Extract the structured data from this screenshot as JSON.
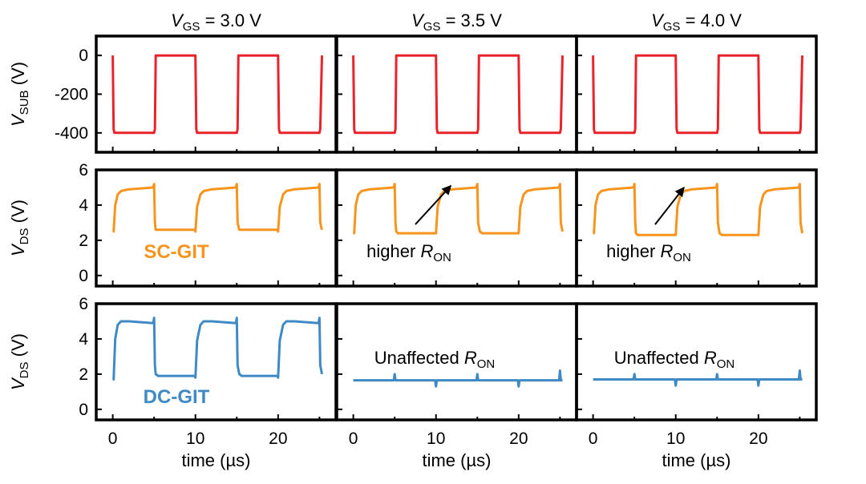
{
  "chart_data": {
    "type": "line",
    "columns": [
      {
        "title_pre": "V",
        "title_sub": "GS",
        "title_post": " = 3.0 V"
      },
      {
        "title_pre": "V",
        "title_sub": "GS",
        "title_post": " = 3.5 V"
      },
      {
        "title_pre": "V",
        "title_sub": "GS",
        "title_post": " = 4.0 V"
      }
    ],
    "rows": [
      {
        "ylabel_pre": "V",
        "ylabel_sub": "SUB",
        "ylabel_post": " (V)",
        "ylim": [
          -500,
          100
        ],
        "yticks": [
          0,
          -200,
          -400
        ],
        "color": "#e8232a",
        "series": [
          {
            "name": "V_SUB 3.0 V",
            "x": [
              0,
              0.1,
              0.2,
              5.0,
              5.1,
              5.2,
              10.0,
              10.1,
              10.2,
              15.0,
              15.1,
              15.2,
              20.0,
              20.1,
              20.2,
              25.0,
              25.1,
              25.3
            ],
            "y": [
              0,
              -380,
              -400,
              -400,
              -380,
              0,
              0,
              -380,
              -400,
              -400,
              -380,
              0,
              0,
              -380,
              -400,
              -400,
              -380,
              0
            ]
          },
          {
            "name": "V_SUB 3.5 V",
            "x": [
              0,
              0.1,
              0.2,
              5.0,
              5.1,
              5.2,
              10.0,
              10.1,
              10.2,
              15.0,
              15.1,
              15.2,
              20.0,
              20.1,
              20.2,
              25.0,
              25.1,
              25.3
            ],
            "y": [
              0,
              -380,
              -400,
              -400,
              -380,
              0,
              0,
              -380,
              -400,
              -400,
              -380,
              0,
              0,
              -380,
              -400,
              -400,
              -380,
              0
            ]
          },
          {
            "name": "V_SUB 4.0 V",
            "x": [
              0,
              0.1,
              0.2,
              5.0,
              5.1,
              5.2,
              10.0,
              10.1,
              10.2,
              15.0,
              15.1,
              15.2,
              20.0,
              20.1,
              20.2,
              25.0,
              25.1,
              25.3
            ],
            "y": [
              0,
              -380,
              -400,
              -400,
              -380,
              0,
              0,
              -380,
              -400,
              -400,
              -380,
              0,
              0,
              -380,
              -400,
              -400,
              -380,
              0
            ]
          }
        ]
      },
      {
        "ylabel_pre": "V",
        "ylabel_sub": "DS",
        "ylabel_post": " (V)",
        "ylim": [
          -0.6,
          6
        ],
        "yticks": [
          0,
          2,
          4,
          6
        ],
        "color": "#f7941d",
        "annotation": {
          "pre": "SC-GIT",
          "sub": "",
          "post": ""
        },
        "series": [
          {
            "name": "SC-GIT 3.0 V",
            "x": [
              0,
              0.1,
              0.3,
              0.6,
              1,
              2,
              4.9,
              5.0,
              5.1,
              5.2,
              5.4,
              9.8,
              9.9,
              10.0,
              10.2,
              10.6,
              11,
              12,
              14.9,
              15.0,
              15.1,
              15.3,
              15.6,
              19.8,
              19.9,
              20.0,
              20.2,
              20.6,
              21,
              22,
              24.9,
              25.0,
              25.1,
              25.3
            ],
            "y": [
              2.5,
              2.5,
              4.0,
              4.6,
              4.8,
              4.9,
              5.0,
              5.2,
              3.0,
              2.6,
              2.6,
              2.6,
              2.6,
              2.5,
              3.9,
              4.6,
              4.8,
              4.9,
              5.0,
              5.2,
              3.0,
              2.6,
              2.6,
              2.6,
              2.6,
              2.5,
              3.9,
              4.6,
              4.8,
              4.9,
              5.0,
              5.2,
              3.0,
              2.6
            ]
          },
          {
            "name": "SC-GIT 3.5 V",
            "x": [
              0,
              0.1,
              0.3,
              0.6,
              1,
              2,
              4.9,
              5.0,
              5.1,
              5.2,
              5.4,
              9.8,
              9.9,
              10.0,
              10.2,
              10.6,
              11,
              12,
              14.9,
              15.0,
              15.1,
              15.3,
              15.6,
              19.8,
              19.9,
              20.0,
              20.2,
              20.6,
              21,
              22,
              24.9,
              25.0,
              25.1,
              25.3
            ],
            "y": [
              2.4,
              2.4,
              4.0,
              4.6,
              4.8,
              4.9,
              5.0,
              5.2,
              3.0,
              2.5,
              2.4,
              2.4,
              2.4,
              2.4,
              3.9,
              4.6,
              4.8,
              4.9,
              5.0,
              5.2,
              3.0,
              2.5,
              2.4,
              2.4,
              2.4,
              2.4,
              3.9,
              4.6,
              4.8,
              4.9,
              5.0,
              5.2,
              3.0,
              2.5
            ]
          },
          {
            "name": "SC-GIT 4.0 V",
            "x": [
              0,
              0.1,
              0.3,
              0.6,
              1,
              2,
              4.9,
              5.0,
              5.1,
              5.2,
              5.4,
              9.8,
              9.9,
              10.0,
              10.2,
              10.6,
              11,
              12,
              14.9,
              15.0,
              15.1,
              15.3,
              15.6,
              19.8,
              19.9,
              20.0,
              20.2,
              20.6,
              21,
              22,
              24.9,
              25.0,
              25.1,
              25.3
            ],
            "y": [
              2.4,
              2.4,
              4.0,
              4.6,
              4.8,
              4.9,
              5.0,
              5.2,
              3.0,
              2.4,
              2.3,
              2.3,
              2.3,
              2.3,
              3.9,
              4.6,
              4.8,
              4.9,
              5.0,
              5.2,
              3.0,
              2.4,
              2.3,
              2.3,
              2.3,
              2.3,
              3.9,
              4.6,
              4.8,
              4.9,
              5.0,
              5.2,
              3.0,
              2.4
            ]
          }
        ],
        "notes": [
          null,
          {
            "pre": "higher ",
            "italic": "R",
            "sub": "ON",
            "arrow_from": [
              7.5,
              2.9
            ],
            "arrow_to": [
              11.8,
              5.1
            ]
          },
          {
            "pre": "higher ",
            "italic": "R",
            "sub": "ON",
            "arrow_from": [
              7.5,
              2.9
            ],
            "arrow_to": [
              11.0,
              5.0
            ]
          }
        ]
      },
      {
        "ylabel_pre": "V",
        "ylabel_sub": "DS",
        "ylabel_post": " (V)",
        "ylim": [
          -0.6,
          6
        ],
        "yticks": [
          0,
          2,
          4,
          6
        ],
        "color": "#3f8ac4",
        "annotation": {
          "pre": "DC-GIT",
          "sub": "",
          "post": ""
        },
        "series": [
          {
            "name": "DC-GIT 3.0 V",
            "x": [
              0,
              0.1,
              0.3,
              0.6,
              1,
              2,
              4.9,
              5.0,
              5.1,
              5.2,
              5.5,
              9.8,
              9.9,
              10.0,
              10.2,
              10.6,
              11,
              12,
              14.9,
              15.0,
              15.1,
              15.3,
              15.6,
              19.8,
              19.9,
              20.0,
              20.2,
              20.6,
              21,
              22,
              24.9,
              25.0,
              25.1,
              25.3
            ],
            "y": [
              1.7,
              1.7,
              4.0,
              4.8,
              5.0,
              5.0,
              4.9,
              5.2,
              2.5,
              2.0,
              1.9,
              1.9,
              1.9,
              1.8,
              3.9,
              4.8,
              5.0,
              5.0,
              4.9,
              5.2,
              2.5,
              2.0,
              1.9,
              1.9,
              1.9,
              1.8,
              3.9,
              4.8,
              5.0,
              5.0,
              4.9,
              5.2,
              2.5,
              2.0
            ]
          },
          {
            "name": "DC-GIT 3.5 V",
            "x": [
              0,
              4.9,
              5.0,
              5.1,
              9.9,
              10.0,
              10.1,
              14.9,
              15.0,
              15.1,
              19.9,
              20.0,
              20.1,
              24.9,
              25.0,
              25.1,
              25.3
            ],
            "y": [
              1.65,
              1.65,
              2.0,
              1.65,
              1.65,
              1.3,
              1.65,
              1.65,
              2.0,
              1.65,
              1.65,
              1.3,
              1.65,
              1.65,
              2.2,
              1.65,
              1.65
            ]
          },
          {
            "name": "DC-GIT 4.0 V",
            "x": [
              0,
              4.9,
              5.0,
              5.1,
              9.9,
              10.0,
              10.1,
              14.9,
              15.0,
              15.1,
              19.9,
              20.0,
              20.1,
              24.9,
              25.0,
              25.1,
              25.3
            ],
            "y": [
              1.7,
              1.7,
              2.0,
              1.7,
              1.7,
              1.35,
              1.7,
              1.7,
              2.0,
              1.7,
              1.7,
              1.35,
              1.7,
              1.7,
              2.2,
              1.7,
              1.7
            ]
          }
        ],
        "notes": [
          null,
          {
            "pre": "Unaffected ",
            "italic": "R",
            "sub": "ON"
          },
          {
            "pre": "Unaffected ",
            "italic": "R",
            "sub": "ON"
          }
        ]
      }
    ],
    "xlim": [
      -2,
      27
    ],
    "xticks": [
      0,
      10,
      20
    ],
    "xlabel": "time (µs)"
  }
}
